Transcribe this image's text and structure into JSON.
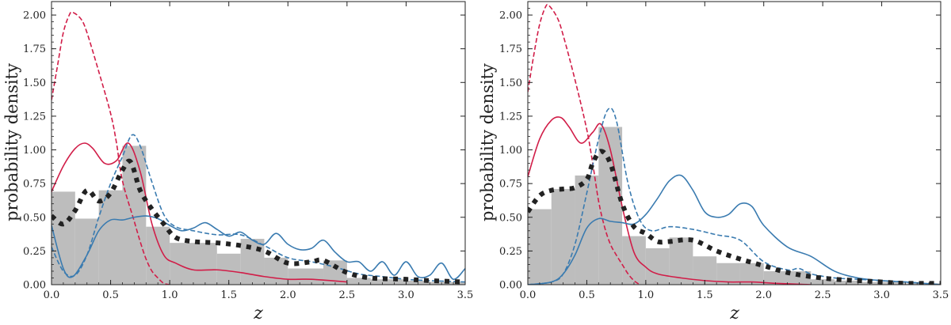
{
  "chart_data": [
    {
      "type": "line",
      "panel": "left",
      "xlabel": "z",
      "ylabel": "probability density",
      "xlim": [
        0.0,
        3.5
      ],
      "ylim": [
        0.0,
        2.1
      ],
      "xticks": [
        0.0,
        0.5,
        1.0,
        1.5,
        2.0,
        2.5,
        3.0,
        3.5
      ],
      "xtick_labels": [
        "0.0",
        "0.5",
        "1.0",
        "1.5",
        "2.0",
        "2.5",
        "3.0",
        "3.5"
      ],
      "yticks": [
        0.0,
        0.25,
        0.5,
        0.75,
        1.0,
        1.25,
        1.5,
        1.75,
        2.0
      ],
      "ytick_labels": [
        "0.00",
        "0.25",
        "0.50",
        "0.75",
        "1.00",
        "1.25",
        "1.50",
        "1.75",
        "2.00"
      ],
      "histogram": {
        "name": "histogram",
        "color": "#bdbdbd",
        "bin_edges": [
          0.0,
          0.2,
          0.4,
          0.6,
          0.8,
          1.0,
          1.2,
          1.4,
          1.6,
          1.8,
          2.0,
          2.3,
          2.5,
          2.7,
          3.0,
          3.2,
          3.5
        ],
        "heights": [
          0.69,
          0.49,
          0.7,
          1.03,
          0.43,
          0.31,
          0.31,
          0.23,
          0.34,
          0.2,
          0.12,
          0.18,
          0.05,
          0.04,
          0.03,
          0.02
        ]
      },
      "series": [
        {
          "name": "red-dashed",
          "color": "#d11d48",
          "style": "dashed",
          "x": [
            0.0,
            0.05,
            0.1,
            0.15,
            0.18,
            0.25,
            0.3,
            0.4,
            0.5,
            0.55,
            0.6,
            0.7,
            0.75,
            0.8,
            0.85,
            0.9,
            0.95,
            1.0
          ],
          "y": [
            1.37,
            1.62,
            1.87,
            2.0,
            2.02,
            1.97,
            1.87,
            1.58,
            1.27,
            1.05,
            0.77,
            0.47,
            0.32,
            0.19,
            0.1,
            0.05,
            0.01,
            0.0
          ]
        },
        {
          "name": "red-solid",
          "color": "#d11d48",
          "style": "solid",
          "x": [
            0.0,
            0.1,
            0.2,
            0.28,
            0.35,
            0.45,
            0.55,
            0.65,
            0.75,
            0.85,
            0.95,
            1.05,
            1.2,
            1.4,
            1.6,
            1.8,
            2.0,
            2.2,
            2.5
          ],
          "y": [
            0.69,
            0.88,
            1.01,
            1.05,
            1.01,
            0.9,
            0.92,
            1.05,
            0.84,
            0.45,
            0.22,
            0.16,
            0.11,
            0.11,
            0.09,
            0.06,
            0.04,
            0.04,
            0.02
          ]
        },
        {
          "name": "blue-dashed",
          "color": "#3a7bb0",
          "style": "dashed",
          "x": [
            0.0,
            0.1,
            0.2,
            0.3,
            0.4,
            0.5,
            0.6,
            0.68,
            0.75,
            0.85,
            0.95,
            1.05,
            1.2,
            1.4,
            1.6,
            1.8,
            2.0,
            2.2,
            2.4,
            2.6,
            2.8,
            3.0,
            3.2,
            3.5
          ],
          "y": [
            0.28,
            0.1,
            0.07,
            0.22,
            0.5,
            0.75,
            0.95,
            1.11,
            1.03,
            0.76,
            0.52,
            0.43,
            0.4,
            0.37,
            0.37,
            0.29,
            0.2,
            0.17,
            0.13,
            0.08,
            0.06,
            0.04,
            0.03,
            0.02
          ]
        },
        {
          "name": "blue-solid",
          "color": "#3a7bb0",
          "style": "solid",
          "x": [
            0.0,
            0.1,
            0.18,
            0.3,
            0.4,
            0.5,
            0.6,
            0.7,
            0.8,
            0.9,
            1.0,
            1.1,
            1.2,
            1.3,
            1.4,
            1.5,
            1.6,
            1.7,
            1.8,
            1.9,
            2.0,
            2.1,
            2.2,
            2.3,
            2.4,
            2.5,
            2.6,
            2.7,
            2.8,
            2.9,
            3.0,
            3.1,
            3.2,
            3.3,
            3.4,
            3.5
          ],
          "y": [
            0.44,
            0.12,
            0.06,
            0.22,
            0.4,
            0.48,
            0.48,
            0.5,
            0.51,
            0.49,
            0.44,
            0.4,
            0.42,
            0.46,
            0.41,
            0.36,
            0.39,
            0.33,
            0.3,
            0.38,
            0.3,
            0.26,
            0.27,
            0.33,
            0.24,
            0.17,
            0.17,
            0.1,
            0.17,
            0.07,
            0.17,
            0.06,
            0.07,
            0.16,
            0.04,
            0.12
          ]
        },
        {
          "name": "black-dotted",
          "color": "#222222",
          "style": "dotted",
          "x": [
            0.0,
            0.1,
            0.2,
            0.3,
            0.4,
            0.5,
            0.6,
            0.67,
            0.75,
            0.85,
            0.95,
            1.05,
            1.2,
            1.4,
            1.6,
            1.8,
            2.0,
            2.2,
            2.3,
            2.5,
            2.7,
            3.0,
            3.2,
            3.5
          ],
          "y": [
            0.51,
            0.45,
            0.55,
            0.7,
            0.62,
            0.68,
            0.85,
            0.91,
            0.7,
            0.56,
            0.45,
            0.35,
            0.32,
            0.31,
            0.29,
            0.25,
            0.16,
            0.17,
            0.18,
            0.09,
            0.05,
            0.04,
            0.03,
            0.02
          ]
        }
      ]
    },
    {
      "type": "line",
      "panel": "right",
      "xlabel": "z",
      "ylabel": "probability density",
      "xlim": [
        0.0,
        3.5
      ],
      "ylim": [
        0.0,
        2.1
      ],
      "xticks": [
        0.0,
        0.5,
        1.0,
        1.5,
        2.0,
        2.5,
        3.0,
        3.5
      ],
      "xtick_labels": [
        "0.0",
        "0.5",
        "1.0",
        "1.5",
        "2.0",
        "2.5",
        "3.0",
        "3.5"
      ],
      "yticks": [
        0.0,
        0.25,
        0.5,
        0.75,
        1.0,
        1.25,
        1.5,
        1.75,
        2.0
      ],
      "ytick_labels": [
        "0.00",
        "0.25",
        "0.50",
        "0.75",
        "1.00",
        "1.25",
        "1.50",
        "1.75",
        "2.00"
      ],
      "histogram": {
        "name": "histogram",
        "color": "#bdbdbd",
        "bin_edges": [
          0.0,
          0.2,
          0.4,
          0.6,
          0.8,
          1.0,
          1.2,
          1.4,
          1.6,
          1.8,
          2.0,
          2.2,
          2.4,
          2.6,
          2.8,
          3.0,
          3.2,
          3.5
        ],
        "heights": [
          0.56,
          0.71,
          0.81,
          1.17,
          0.36,
          0.27,
          0.35,
          0.21,
          0.16,
          0.16,
          0.1,
          0.1,
          0.04,
          0.03,
          0.02,
          0.02,
          0.01
        ]
      },
      "series": [
        {
          "name": "red-dashed",
          "color": "#d11d48",
          "style": "dashed",
          "x": [
            0.0,
            0.05,
            0.1,
            0.15,
            0.18,
            0.25,
            0.3,
            0.4,
            0.5,
            0.55,
            0.6,
            0.65,
            0.7,
            0.75,
            0.8,
            0.85,
            0.9,
            0.95
          ],
          "y": [
            1.43,
            1.7,
            1.93,
            2.06,
            2.07,
            1.98,
            1.85,
            1.52,
            1.15,
            0.9,
            0.62,
            0.43,
            0.3,
            0.22,
            0.15,
            0.08,
            0.03,
            0.0
          ]
        },
        {
          "name": "red-solid",
          "color": "#d11d48",
          "style": "solid",
          "x": [
            0.0,
            0.1,
            0.2,
            0.28,
            0.35,
            0.45,
            0.55,
            0.62,
            0.7,
            0.8,
            0.9,
            1.0,
            1.1,
            1.3,
            1.5,
            1.7,
            1.9,
            2.1,
            2.4
          ],
          "y": [
            0.8,
            1.08,
            1.22,
            1.24,
            1.17,
            1.05,
            1.13,
            1.19,
            1.0,
            0.58,
            0.24,
            0.13,
            0.08,
            0.05,
            0.03,
            0.02,
            0.02,
            0.01,
            0.0
          ]
        },
        {
          "name": "blue-dashed",
          "color": "#3a7bb0",
          "style": "dashed",
          "x": [
            0.0,
            0.2,
            0.3,
            0.4,
            0.5,
            0.6,
            0.68,
            0.75,
            0.85,
            0.95,
            1.05,
            1.2,
            1.4,
            1.6,
            1.8,
            2.0,
            2.2,
            2.3,
            2.4,
            2.6,
            2.8,
            3.0,
            3.2,
            3.5
          ],
          "y": [
            0.0,
            0.02,
            0.08,
            0.3,
            0.68,
            1.08,
            1.3,
            1.22,
            0.75,
            0.48,
            0.4,
            0.43,
            0.41,
            0.37,
            0.33,
            0.17,
            0.11,
            0.12,
            0.08,
            0.05,
            0.04,
            0.03,
            0.02,
            0.0
          ]
        },
        {
          "name": "blue-solid",
          "color": "#3a7bb0",
          "style": "solid",
          "x": [
            0.0,
            0.2,
            0.3,
            0.4,
            0.5,
            0.6,
            0.7,
            0.8,
            0.9,
            1.0,
            1.1,
            1.2,
            1.3,
            1.4,
            1.5,
            1.6,
            1.7,
            1.8,
            1.9,
            2.0,
            2.2,
            2.4,
            2.6,
            2.8,
            3.0,
            3.2,
            3.5
          ],
          "y": [
            0.0,
            0.02,
            0.08,
            0.22,
            0.42,
            0.49,
            0.47,
            0.46,
            0.45,
            0.52,
            0.64,
            0.77,
            0.81,
            0.7,
            0.54,
            0.5,
            0.52,
            0.6,
            0.58,
            0.44,
            0.28,
            0.21,
            0.1,
            0.05,
            0.03,
            0.02,
            0.0
          ]
        },
        {
          "name": "black-dotted",
          "color": "#222222",
          "style": "dotted",
          "x": [
            0.0,
            0.1,
            0.2,
            0.3,
            0.4,
            0.5,
            0.55,
            0.62,
            0.7,
            0.8,
            0.9,
            1.0,
            1.1,
            1.2,
            1.4,
            1.6,
            1.8,
            2.0,
            2.2,
            2.4,
            2.6,
            2.8,
            3.0,
            3.2,
            3.5
          ],
          "y": [
            0.54,
            0.66,
            0.7,
            0.71,
            0.72,
            0.78,
            0.9,
            0.99,
            0.9,
            0.6,
            0.43,
            0.38,
            0.32,
            0.32,
            0.33,
            0.25,
            0.19,
            0.14,
            0.09,
            0.06,
            0.04,
            0.03,
            0.02,
            0.01,
            0.01
          ]
        }
      ]
    }
  ]
}
